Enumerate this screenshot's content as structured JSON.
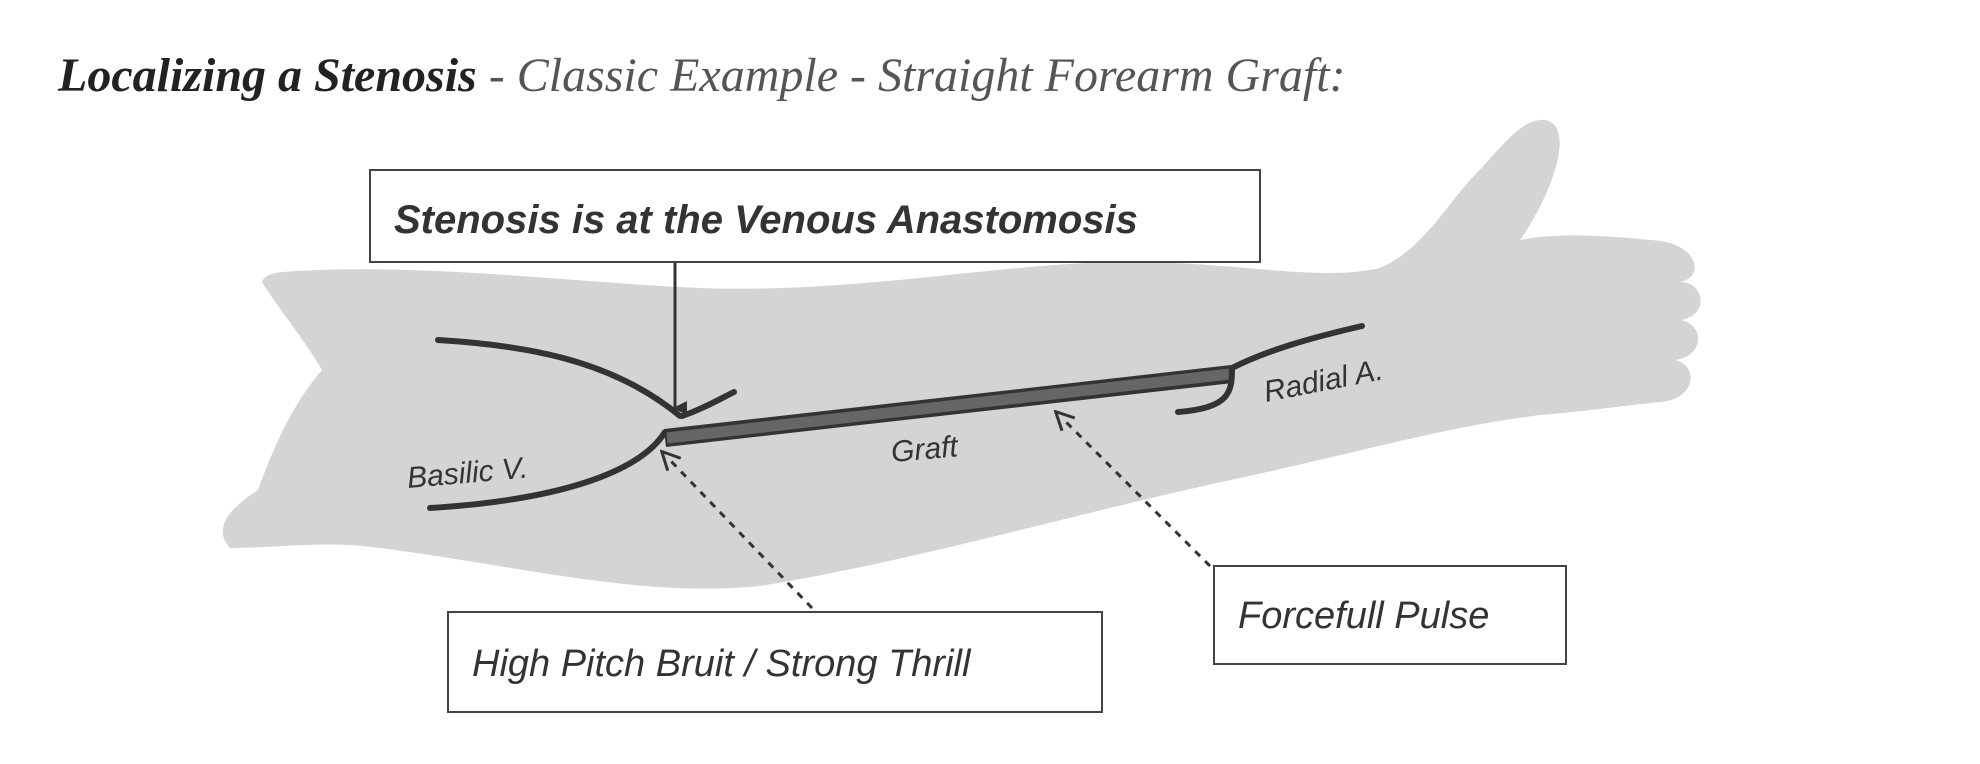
{
  "heading": {
    "bold": "Localizing a Stenosis",
    "rest": " - Classic Example - Straight Forearm Graft:"
  },
  "callouts": {
    "stenosis_location": "Stenosis is at the Venous Anastomosis",
    "bruit": "High Pitch Bruit / Strong Thrill",
    "pulse": "Forcefull Pulse"
  },
  "labels": {
    "basilic": "Basilic V.",
    "graft": "Graft",
    "radial": "Radial A."
  },
  "colors": {
    "arm": "#d4d4d4",
    "vessel": "#333333",
    "graft": "#666666",
    "box_border": "#444444"
  }
}
